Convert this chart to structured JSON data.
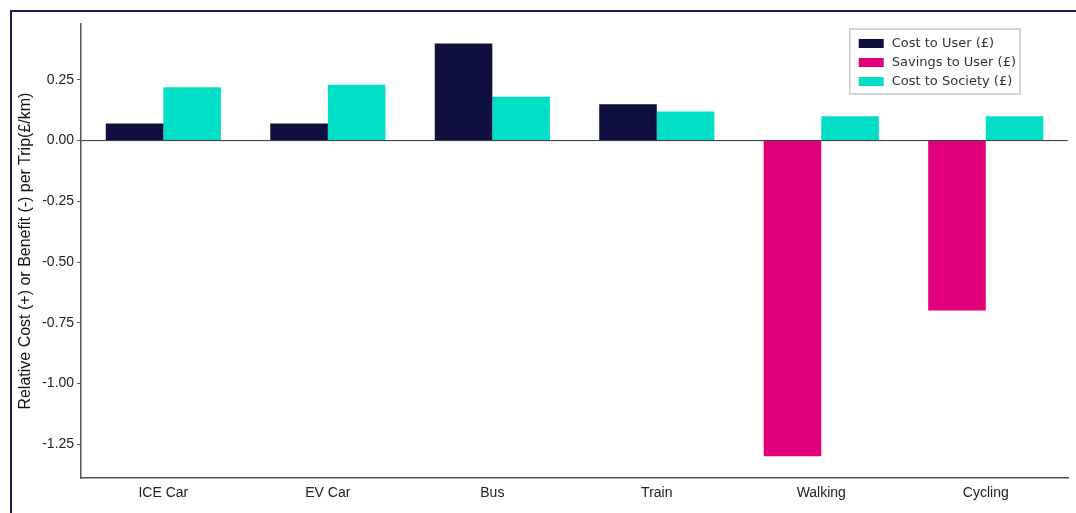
{
  "chart_data": {
    "type": "bar",
    "ylabel": "Relative Cost (+) or Benefit (-) per Trip(£/km)",
    "categories": [
      "ICE Car",
      "EV Car",
      "Bus",
      "Train",
      "Walking",
      "Cycling"
    ],
    "series": [
      {
        "name": "Cost to User (£)",
        "color": "#0f103d",
        "values": [
          0.07,
          0.07,
          0.4,
          0.15,
          null,
          null
        ]
      },
      {
        "name": "Savings to User (£)",
        "color": "#e2007a",
        "values": [
          null,
          null,
          null,
          null,
          -1.3,
          -0.7
        ]
      },
      {
        "name": "Cost to Society (£)",
        "color": "#00dec6",
        "values": [
          0.22,
          0.23,
          0.18,
          0.12,
          0.1,
          0.1
        ]
      }
    ],
    "ylim": [
      -1.39,
      0.48
    ],
    "yticks": [
      {
        "value": 0.25,
        "label": "0.25"
      },
      {
        "value": 0,
        "label": "0.00"
      },
      {
        "value": -0.25,
        "label": "-0.25"
      },
      {
        "value": -0.5,
        "label": "-0.50"
      },
      {
        "value": -0.75,
        "label": "-0.75"
      },
      {
        "value": -1,
        "label": "-1.00"
      },
      {
        "value": -1.25,
        "label": "-1.25"
      }
    ],
    "ref_lines": [
      {
        "axis": "y",
        "value": 0,
        "color": "#333333"
      }
    ],
    "grid": false,
    "legend": "top right"
  }
}
